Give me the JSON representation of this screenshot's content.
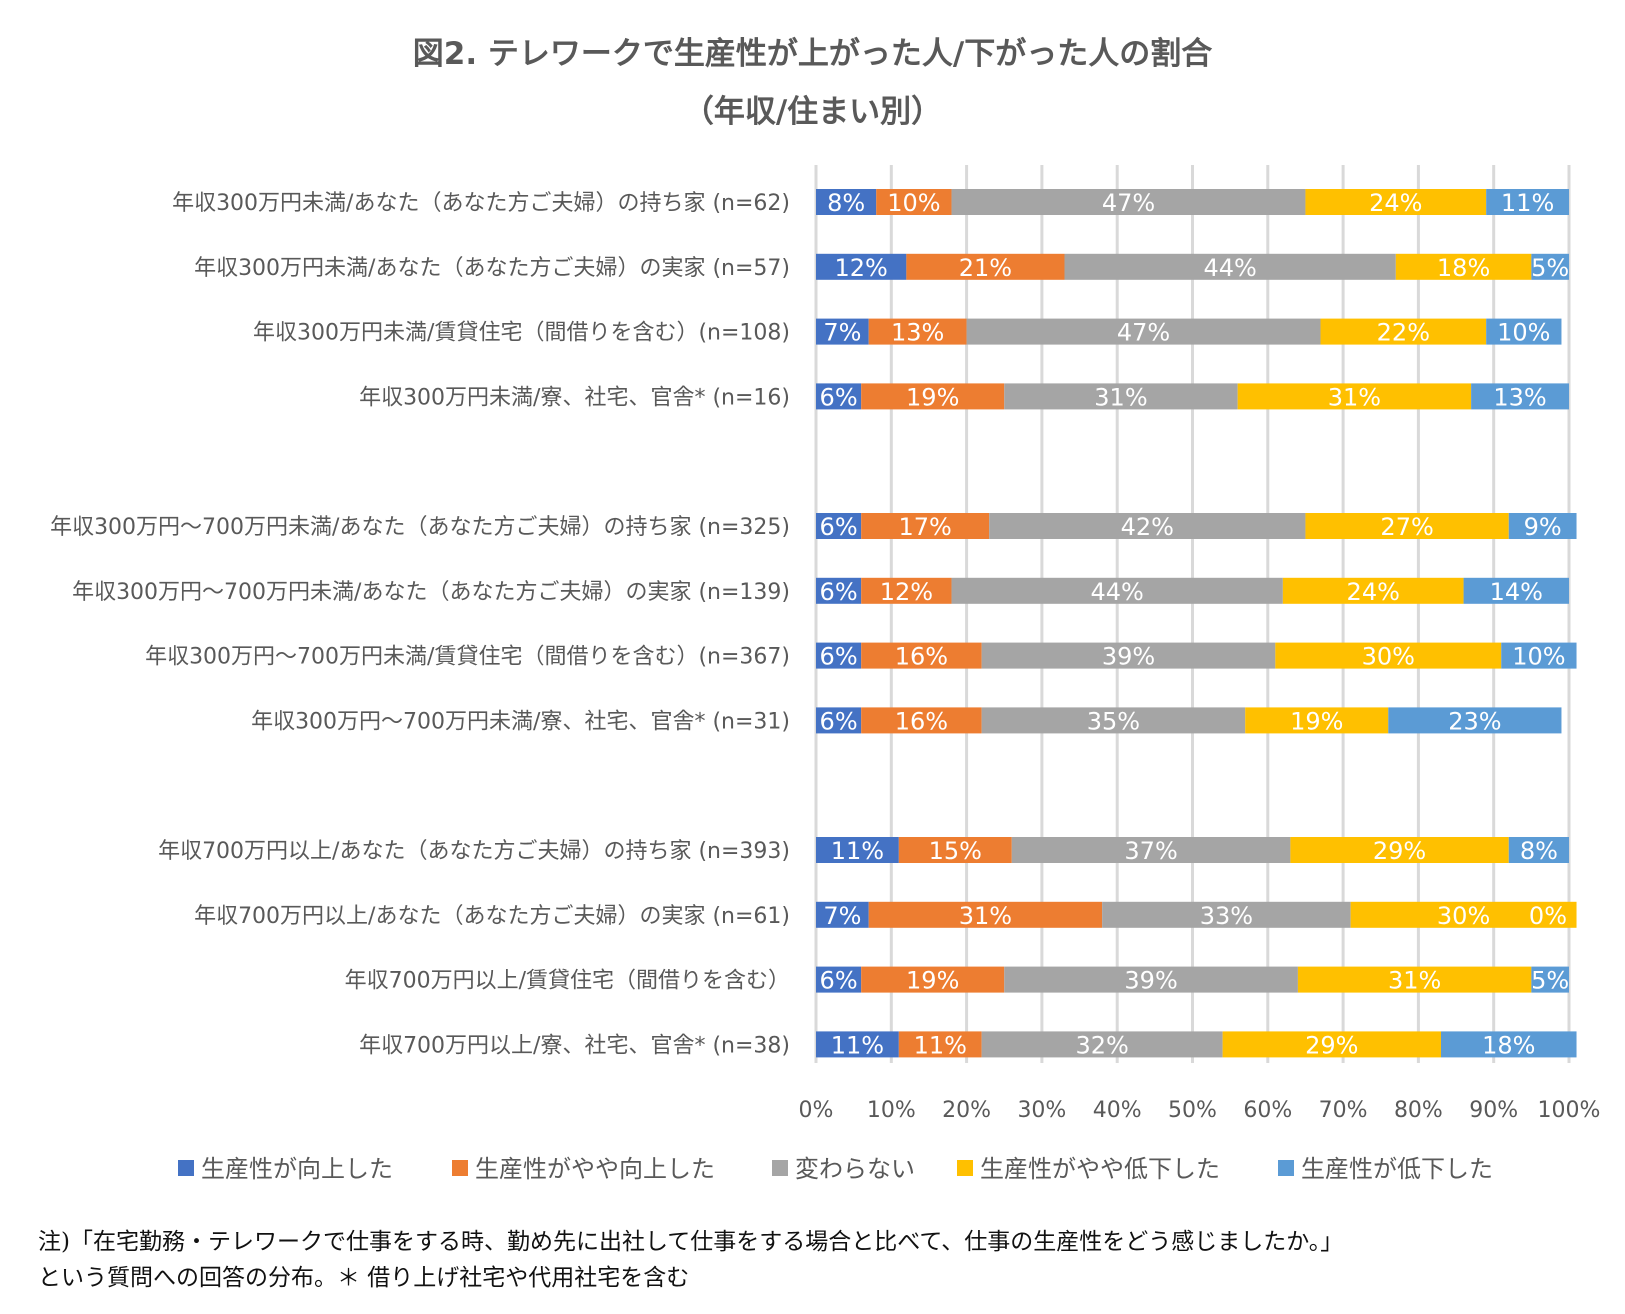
{
  "chart_data": {
    "type": "bar",
    "orientation": "horizontal",
    "stacked": "percent",
    "title": "図2. テレワークで生産性が上がった人/下がった人の割合",
    "subtitle": "（年収/住まい別）",
    "xlim": [
      0,
      100
    ],
    "x_ticks": [
      "0%",
      "10%",
      "20%",
      "30%",
      "40%",
      "50%",
      "60%",
      "70%",
      "80%",
      "90%",
      "100%"
    ],
    "grid": "vertical",
    "legend": "bottom",
    "series": [
      {
        "name": "生産性が向上した",
        "color": "#4472C4"
      },
      {
        "name": "生産性がやや向上した",
        "color": "#ED7D31"
      },
      {
        "name": "変わらない",
        "color": "#A5A5A5"
      },
      {
        "name": "生産性がやや低下した",
        "color": "#FFC000"
      },
      {
        "name": "生産性が低下した",
        "color": "#5B9BD5"
      }
    ],
    "rows": [
      {
        "label": "年収300万円未満/あなた（あなた方ご夫婦）の持ち家 (n=62)",
        "group": 0,
        "values": [
          8,
          10,
          47,
          24,
          11
        ],
        "labels": [
          "8%",
          "10%",
          "47%",
          "24%",
          "11%"
        ]
      },
      {
        "label": "年収300万円未満/あなた（あなた方ご夫婦）の実家 (n=57)",
        "group": 0,
        "values": [
          12,
          21,
          44,
          18,
          5
        ],
        "labels": [
          "12%",
          "21%",
          "44%",
          "18%",
          "5%"
        ]
      },
      {
        "label": "年収300万円未満/賃貸住宅（間借りを含む）(n=108)",
        "group": 0,
        "values": [
          7,
          13,
          47,
          22,
          10
        ],
        "labels": [
          "7%",
          "13%",
          "47%",
          "22%",
          "10%"
        ]
      },
      {
        "label": "年収300万円未満/寮、社宅、官舎* (n=16)",
        "group": 0,
        "values": [
          6,
          19,
          31,
          31,
          13
        ],
        "labels": [
          "6%",
          "19%",
          "31%",
          "31%",
          "13%"
        ]
      },
      {
        "label": "年収300万円～700万円未満/あなた（あなた方ご夫婦）の持ち家 (n=325)",
        "group": 1,
        "values": [
          6,
          17,
          42,
          27,
          9
        ],
        "labels": [
          "6%",
          "17%",
          "42%",
          "27%",
          "9%"
        ]
      },
      {
        "label": "年収300万円～700万円未満/あなた（あなた方ご夫婦）の実家 (n=139)",
        "group": 1,
        "values": [
          6,
          12,
          44,
          24,
          14
        ],
        "labels": [
          "6%",
          "12%",
          "44%",
          "24%",
          "14%"
        ]
      },
      {
        "label": "年収300万円～700万円未満/賃貸住宅（間借りを含む）(n=367)",
        "group": 1,
        "values": [
          6,
          16,
          39,
          30,
          10
        ],
        "labels": [
          "6%",
          "16%",
          "39%",
          "30%",
          "10%"
        ]
      },
      {
        "label": "年収300万円～700万円未満/寮、社宅、官舎* (n=31)",
        "group": 1,
        "values": [
          6,
          16,
          35,
          19,
          23
        ],
        "labels": [
          "6%",
          "16%",
          "35%",
          "19%",
          "23%"
        ]
      },
      {
        "label": "年収700万円以上/あなた（あなた方ご夫婦）の持ち家 (n=393)",
        "group": 2,
        "values": [
          11,
          15,
          37,
          29,
          8
        ],
        "labels": [
          "11%",
          "15%",
          "37%",
          "29%",
          "8%"
        ]
      },
      {
        "label": "年収700万円以上/あなた（あなた方ご夫婦）の実家 (n=61)",
        "group": 2,
        "values": [
          7,
          31,
          33,
          30,
          0
        ],
        "labels": [
          "7%",
          "31%",
          "33%",
          "30%",
          "0%"
        ]
      },
      {
        "label": "年収700万円以上/賃貸住宅（間借りを含む）",
        "group": 2,
        "values": [
          6,
          19,
          39,
          31,
          5
        ],
        "labels": [
          "6%",
          "19%",
          "39%",
          "31%",
          "5%"
        ]
      },
      {
        "label": "年収700万円以上/寮、社宅、官舎* (n=38)",
        "group": 2,
        "values": [
          11,
          11,
          32,
          29,
          18
        ],
        "labels": [
          "11%",
          "11%",
          "32%",
          "29%",
          "18%"
        ]
      }
    ]
  },
  "notes": {
    "line1": "注)「在宅勤務・テレワークで仕事をする時、勤め先に出社して仕事をする場合と比べて、仕事の生産性をどう感じましたか。」",
    "line2": "という質問への回答の分布。＊ 借り上げ社宅や代用社宅を含む"
  }
}
